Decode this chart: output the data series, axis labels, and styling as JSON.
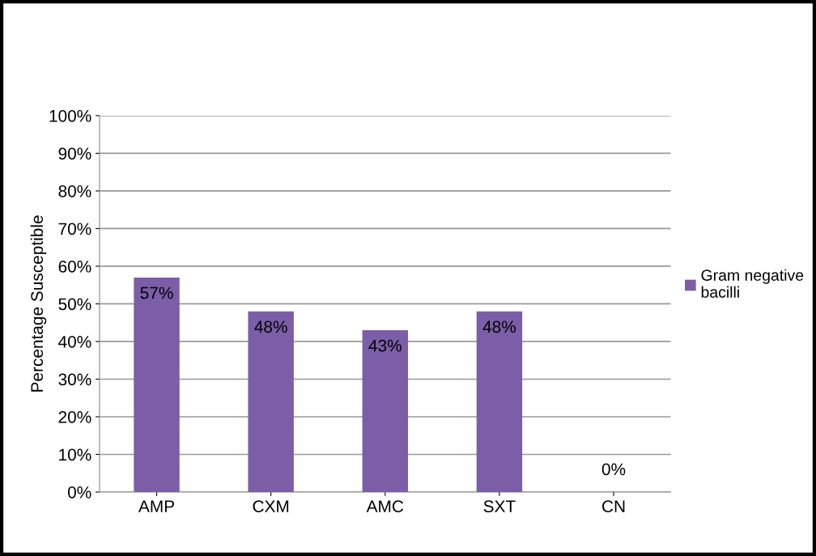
{
  "chart_data": {
    "type": "bar",
    "ylabel": "Percentage Susceptible",
    "categories": [
      "AMP",
      "CXM",
      "AMC",
      "SXT",
      "CN"
    ],
    "series": [
      {
        "name": "Gram negative\nbacilli",
        "color": "#7b5ea7",
        "values": [
          57,
          48,
          43,
          48,
          0
        ],
        "value_labels": [
          "57%",
          "48%",
          "43%",
          "48%",
          "0%"
        ]
      }
    ],
    "ylim": [
      0,
      100
    ],
    "yticks": [
      {
        "value": 0,
        "label": "0%"
      },
      {
        "value": 10,
        "label": "10%"
      },
      {
        "value": 20,
        "label": "20%"
      },
      {
        "value": 30,
        "label": "30%"
      },
      {
        "value": 40,
        "label": "40%"
      },
      {
        "value": 50,
        "label": "50%"
      },
      {
        "value": 60,
        "label": "60%"
      },
      {
        "value": 70,
        "label": "70%"
      },
      {
        "value": 80,
        "label": "80%"
      },
      {
        "value": 90,
        "label": "90%"
      },
      {
        "value": 100,
        "label": "100%"
      }
    ],
    "grid": "y",
    "legend": "right"
  }
}
